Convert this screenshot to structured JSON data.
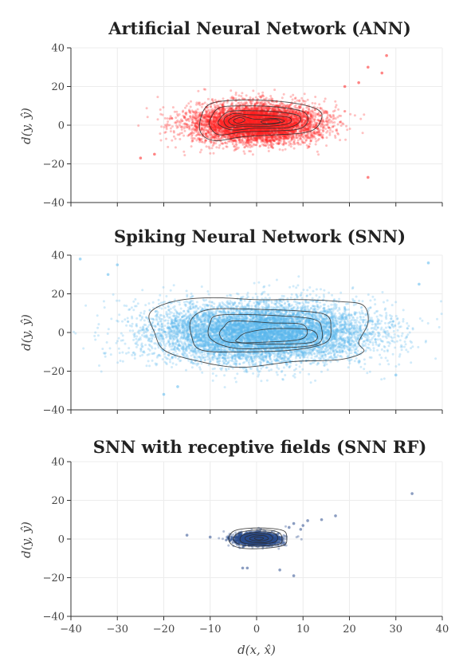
{
  "figure": {
    "xlabel": "d(x, x̂)",
    "xlim": [
      -40,
      40
    ],
    "xticks": [
      -40,
      -30,
      -20,
      -10,
      0,
      10,
      20,
      30,
      40
    ],
    "grid": true
  },
  "chart_data": [
    {
      "type": "scatter",
      "title": "Artificial Neural Network (ANN)",
      "ylabel": "d(y, ŷ)",
      "xlim": [
        -40,
        40
      ],
      "ylim": [
        -40,
        40
      ],
      "yticks": [
        -40,
        -20,
        0,
        20,
        40
      ],
      "color": "#ff2020",
      "cloud": {
        "cx": 0,
        "cy": 1,
        "sx": 7.5,
        "sy": 5.5,
        "n": 6000
      },
      "outliers": [
        [
          28,
          36
        ],
        [
          24,
          30
        ],
        [
          27,
          27
        ],
        [
          24,
          -27
        ],
        [
          -25,
          -17
        ],
        [
          22,
          22
        ],
        [
          19,
          20
        ],
        [
          -22,
          -15
        ]
      ],
      "contours": [
        [
          [
            -12,
            4
          ],
          [
            -10,
            11
          ],
          [
            -4,
            13
          ],
          [
            4,
            12.5
          ],
          [
            11,
            10
          ],
          [
            14,
            6
          ],
          [
            13,
            -1
          ],
          [
            10,
            -4
          ],
          [
            4,
            -5
          ],
          [
            -3,
            -6
          ],
          [
            -9,
            -8
          ],
          [
            -12,
            -4
          ]
        ],
        [
          [
            -10,
            3
          ],
          [
            -8,
            9
          ],
          [
            -3,
            10
          ],
          [
            4,
            9.5
          ],
          [
            10,
            7
          ],
          [
            11,
            2
          ],
          [
            9,
            -2
          ],
          [
            3,
            -3
          ],
          [
            -3,
            -3.5
          ],
          [
            -8,
            -5
          ],
          [
            -10,
            -1
          ]
        ],
        [
          [
            -8,
            3
          ],
          [
            -6,
            7
          ],
          [
            -2,
            7.5
          ],
          [
            4,
            7
          ],
          [
            9,
            5
          ],
          [
            9,
            1
          ],
          [
            6,
            -1.5
          ],
          [
            0,
            -1.5
          ],
          [
            -5,
            -2.5
          ],
          [
            -8,
            0
          ]
        ],
        [
          [
            -7,
            3
          ],
          [
            -5,
            6
          ],
          [
            -2,
            5.5
          ],
          [
            3,
            5
          ],
          [
            7,
            4
          ],
          [
            7,
            1
          ],
          [
            3,
            -0.5
          ],
          [
            -2,
            -0.5
          ],
          [
            -6,
            -1
          ]
        ],
        [
          [
            -6,
            2.5
          ],
          [
            -4,
            5
          ],
          [
            -2,
            4
          ],
          [
            0,
            3
          ],
          [
            4,
            3.5
          ],
          [
            6,
            2
          ],
          [
            3,
            0.5
          ],
          [
            -2,
            0.5
          ],
          [
            -5,
            0
          ]
        ],
        [
          [
            -5,
            2.5
          ],
          [
            -3.5,
            4
          ],
          [
            -2.5,
            2.5
          ],
          [
            -4,
            1
          ]
        ],
        [
          [
            1,
            2
          ],
          [
            4,
            3
          ],
          [
            5,
            1.5
          ],
          [
            2,
            0.8
          ]
        ]
      ]
    },
    {
      "type": "scatter",
      "title": "Spiking Neural Network (SNN)",
      "ylabel": "d(y, ŷ)",
      "xlim": [
        -40,
        40
      ],
      "ylim": [
        -40,
        40
      ],
      "yticks": [
        -40,
        -20,
        0,
        20,
        40
      ],
      "color": "#5ab8ee",
      "cloud": {
        "cx": 1,
        "cy": 0,
        "sx": 13,
        "sy": 8.5,
        "n": 9000
      },
      "outliers": [
        [
          -38,
          38
        ],
        [
          -30,
          35
        ],
        [
          37,
          36
        ],
        [
          35,
          25
        ],
        [
          -20,
          -32
        ],
        [
          -17,
          -28
        ],
        [
          30,
          -22
        ],
        [
          -32,
          30
        ]
      ],
      "contours": [
        [
          [
            -23,
            10
          ],
          [
            -18,
            16
          ],
          [
            -10,
            18
          ],
          [
            0,
            17
          ],
          [
            10,
            17
          ],
          [
            18,
            16
          ],
          [
            23,
            14
          ],
          [
            24,
            5
          ],
          [
            22,
            -5
          ],
          [
            23,
            -10
          ],
          [
            18,
            -14
          ],
          [
            8,
            -15
          ],
          [
            -4,
            -18
          ],
          [
            -14,
            -14
          ],
          [
            -20,
            -9
          ],
          [
            -22,
            0
          ]
        ],
        [
          [
            -14,
            7
          ],
          [
            -10,
            12
          ],
          [
            0,
            12
          ],
          [
            10,
            11
          ],
          [
            15,
            9
          ],
          [
            16,
            3
          ],
          [
            15,
            -5
          ],
          [
            8,
            -9
          ],
          [
            -4,
            -10
          ],
          [
            -12,
            -9
          ],
          [
            -14,
            -2
          ]
        ],
        [
          [
            -10,
            5
          ],
          [
            -8,
            9
          ],
          [
            2,
            9
          ],
          [
            12,
            7
          ],
          [
            14,
            2
          ],
          [
            13,
            -6
          ],
          [
            4,
            -8
          ],
          [
            -5,
            -8
          ],
          [
            -10,
            -3
          ]
        ],
        [
          [
            -7,
            3
          ],
          [
            -5,
            6
          ],
          [
            3,
            5
          ],
          [
            10,
            4
          ],
          [
            10,
            -3
          ],
          [
            2,
            -5
          ],
          [
            -6,
            -5
          ],
          [
            -8,
            -1
          ]
        ],
        [
          [
            -4,
            -3
          ],
          [
            -2,
            0
          ],
          [
            4,
            2
          ],
          [
            12,
            1
          ],
          [
            12,
            -5
          ],
          [
            2,
            -6
          ],
          [
            -4,
            -5
          ]
        ]
      ]
    },
    {
      "type": "scatter",
      "title": "SNN with receptive fields (SNN RF)",
      "ylabel": "d(y, ŷ)",
      "xlim": [
        -40,
        40
      ],
      "ylim": [
        -40,
        40
      ],
      "yticks": [
        -40,
        -20,
        0,
        20,
        40
      ],
      "color": "#2c4d8e",
      "cloud": {
        "cx": 0,
        "cy": 0,
        "sx": 2.6,
        "sy": 1.8,
        "n": 2500
      },
      "outliers": [
        [
          33.5,
          23.5
        ],
        [
          17,
          12
        ],
        [
          14,
          10
        ],
        [
          11,
          9.5
        ],
        [
          8,
          8
        ],
        [
          10,
          7
        ],
        [
          7,
          6
        ],
        [
          9.5,
          5
        ],
        [
          -15,
          2
        ],
        [
          8,
          -19
        ],
        [
          5,
          -16
        ],
        [
          -2,
          -15
        ],
        [
          -3,
          -15
        ],
        [
          6,
          -3
        ],
        [
          -10,
          1
        ]
      ],
      "contours": [
        [
          [
            -5,
            4
          ],
          [
            -2,
            5.5
          ],
          [
            3,
            5.5
          ],
          [
            6,
            4
          ],
          [
            6.5,
            0
          ],
          [
            6,
            -3
          ],
          [
            3,
            -4.5
          ],
          [
            -2,
            -5
          ],
          [
            -5,
            -3.5
          ],
          [
            -6,
            0
          ]
        ],
        [
          [
            -4,
            3
          ],
          [
            -1,
            4.5
          ],
          [
            3,
            4.5
          ],
          [
            5,
            3
          ],
          [
            5.5,
            0
          ],
          [
            5,
            -2.5
          ],
          [
            2,
            -3.5
          ],
          [
            -2,
            -3.5
          ],
          [
            -4,
            -2.5
          ],
          [
            -5,
            0
          ]
        ],
        [
          [
            -3,
            2
          ],
          [
            0,
            3.5
          ],
          [
            3,
            3.5
          ],
          [
            4.5,
            1.5
          ],
          [
            4,
            -1.5
          ],
          [
            1,
            -2.5
          ],
          [
            -2,
            -2.5
          ],
          [
            -3.5,
            -1
          ]
        ],
        [
          [
            -2,
            1.5
          ],
          [
            0,
            2.5
          ],
          [
            2.5,
            2.5
          ],
          [
            3.5,
            0.5
          ],
          [
            2.5,
            -1.5
          ],
          [
            0,
            -1.8
          ],
          [
            -2,
            -1
          ],
          [
            -2.5,
            0.5
          ]
        ],
        [
          [
            -1,
            1
          ],
          [
            0.5,
            1.8
          ],
          [
            2,
            1.5
          ],
          [
            2.5,
            0
          ],
          [
            1,
            -1
          ],
          [
            -0.5,
            -0.8
          ],
          [
            -1.5,
            0
          ]
        ],
        [
          [
            -0.5,
            0.5
          ],
          [
            0.5,
            1
          ],
          [
            1.5,
            0.5
          ],
          [
            1,
            -0.3
          ],
          [
            0,
            -0.3
          ]
        ]
      ]
    }
  ]
}
